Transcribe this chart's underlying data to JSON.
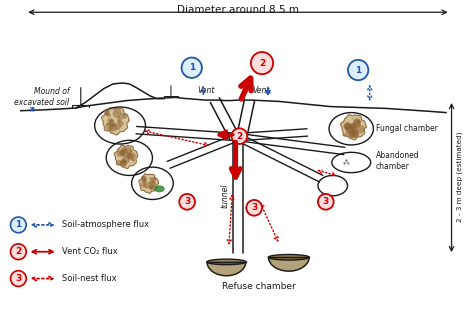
{
  "background_color": "#ffffff",
  "red": "#cc0000",
  "blue": "#2255aa",
  "black": "#1a1a1a",
  "labels": {
    "diameter": "Diameter around 8.5 m",
    "mound": "Mound of\nexcavated soil",
    "vent_left": "Vent",
    "vent_right": "Vent",
    "fungal_chamber": "Fungal chamber",
    "abandoned_chamber": "Abandoned\nchamber",
    "refuse_chamber": "Refuse chamber",
    "tunnel": "tunnel",
    "depth": "2 - 3 m deep (estimated)"
  },
  "legend_items": [
    {
      "num": "1",
      "circle_fc": "#ddeeff",
      "circle_ec": "#2255aa",
      "arrow_color": "#2255aa",
      "style": "dotted",
      "label": "Soil-atmosphere flux"
    },
    {
      "num": "2",
      "circle_fc": "#ffdddd",
      "circle_ec": "#cc0000",
      "arrow_color": "#cc0000",
      "style": "solid",
      "label": "Vent CO₂ flux"
    },
    {
      "num": "3",
      "circle_fc": "#ffdddd",
      "circle_ec": "#cc0000",
      "arrow_color": "#cc0000",
      "style": "dotted",
      "label": "Soil-nest flux"
    }
  ]
}
